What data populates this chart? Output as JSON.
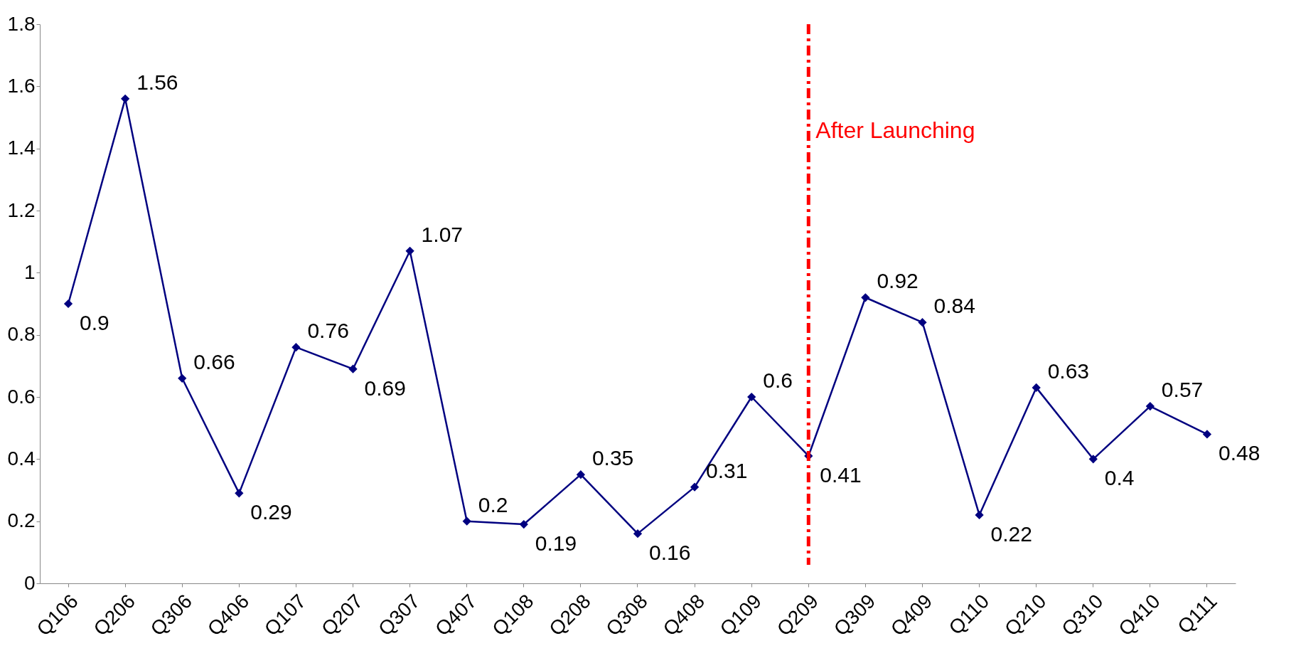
{
  "chart_data": {
    "type": "line",
    "categories": [
      "Q106",
      "Q206",
      "Q306",
      "Q406",
      "Q107",
      "Q207",
      "Q307",
      "Q407",
      "Q108",
      "Q208",
      "Q308",
      "Q408",
      "Q109",
      "Q209",
      "Q309",
      "Q409",
      "Q110",
      "Q210",
      "Q310",
      "Q410",
      "Q111"
    ],
    "series": [
      {
        "color": "#000080",
        "values": [
          0.9,
          1.56,
          0.66,
          0.29,
          0.76,
          0.69,
          1.07,
          0.2,
          0.19,
          0.35,
          0.16,
          0.31,
          0.6,
          0.41,
          0.92,
          0.84,
          0.22,
          0.63,
          0.4,
          0.57,
          0.48
        ]
      }
    ],
    "ylim": [
      0,
      1.8
    ],
    "yticks": [
      0,
      0.2,
      0.4,
      0.6,
      0.8,
      1,
      1.2,
      1.4,
      1.6,
      1.8
    ],
    "grid": false,
    "marker": "diamond",
    "line_style": "solid",
    "data_labels": true,
    "ref_lines": [
      {
        "axis": "x",
        "value": "Q209",
        "label": "After Launching",
        "color": "#ff0000",
        "line_style": "dashdot"
      }
    ]
  }
}
